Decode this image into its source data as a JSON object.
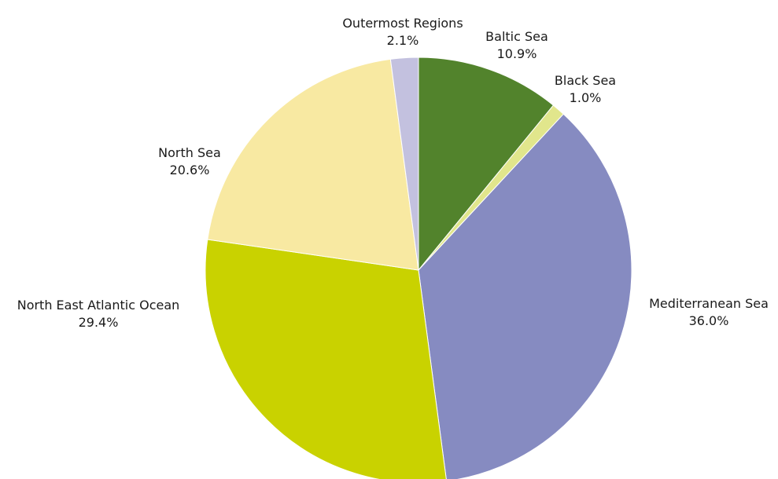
{
  "chart_data": {
    "type": "pie",
    "title": "",
    "start_angle_deg": 0,
    "direction": "clockwise",
    "legend": "none",
    "slices": [
      {
        "label": "Baltic Sea",
        "value": 10.9,
        "value_label": "10.9%",
        "color": "#52832c"
      },
      {
        "label": "Black Sea",
        "value": 1.0,
        "value_label": "1.0%",
        "color": "#e1e68c"
      },
      {
        "label": "Mediterranean Sea",
        "value": 36.0,
        "value_label": "36.0%",
        "color": "#868bc1"
      },
      {
        "label": "North East Atlantic Ocean",
        "value": 29.4,
        "value_label": "29.4%",
        "color": "#c9d200"
      },
      {
        "label": "North Sea",
        "value": 20.6,
        "value_label": "20.6%",
        "color": "#f8e9a2"
      },
      {
        "label": "Outermost Regions",
        "value": 2.1,
        "value_label": "2.1%",
        "color": "#c3c1df"
      }
    ]
  }
}
